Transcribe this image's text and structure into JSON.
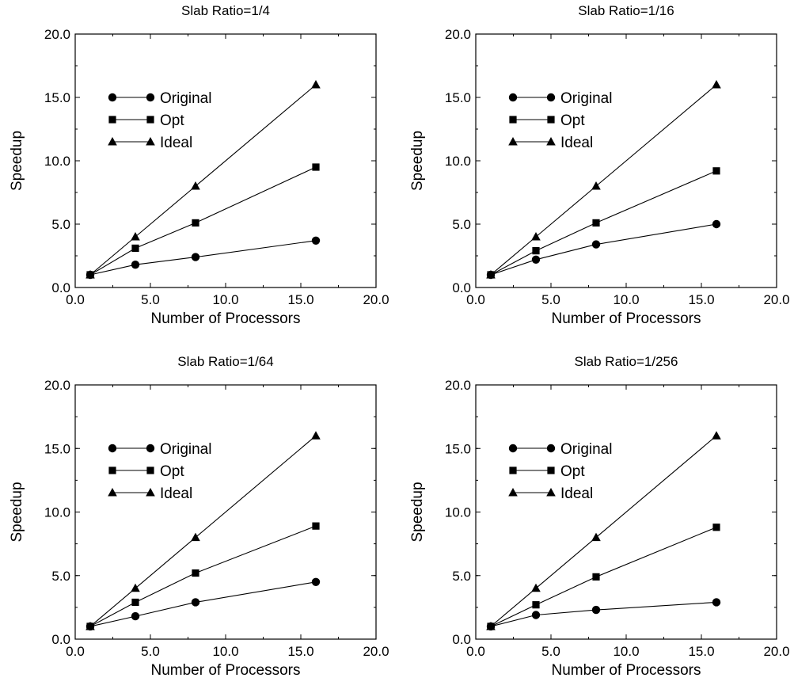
{
  "chart_data": [
    {
      "type": "line",
      "title": "Slab Ratio=1/4",
      "xlabel": "Number of Processors",
      "ylabel": "Speedup",
      "xlim": [
        0,
        20
      ],
      "ylim": [
        0,
        20
      ],
      "x_ticks": [
        "0.0",
        "5.0",
        "10.0",
        "15.0",
        "20.0"
      ],
      "y_ticks": [
        "0.0",
        "5.0",
        "10.0",
        "15.0",
        "20.0"
      ],
      "legend_position": "upper-left",
      "grid": false,
      "x": [
        1,
        4,
        8,
        16
      ],
      "series": [
        {
          "name": "Original",
          "marker": "circle",
          "values": [
            1.0,
            1.8,
            2.4,
            3.7
          ]
        },
        {
          "name": "Opt",
          "marker": "square",
          "values": [
            1.0,
            3.1,
            5.1,
            9.5
          ]
        },
        {
          "name": "Ideal",
          "marker": "triangle",
          "values": [
            1.0,
            4.0,
            8.0,
            16.0
          ]
        }
      ]
    },
    {
      "type": "line",
      "title": "Slab Ratio=1/16",
      "xlabel": "Number of Processors",
      "ylabel": "Speedup",
      "xlim": [
        0,
        20
      ],
      "ylim": [
        0,
        20
      ],
      "x_ticks": [
        "0.0",
        "5.0",
        "10.0",
        "15.0",
        "20.0"
      ],
      "y_ticks": [
        "0.0",
        "5.0",
        "10.0",
        "15.0",
        "20.0"
      ],
      "legend_position": "upper-left",
      "grid": false,
      "x": [
        1,
        4,
        8,
        16
      ],
      "series": [
        {
          "name": "Original",
          "marker": "circle",
          "values": [
            1.0,
            2.2,
            3.4,
            5.0
          ]
        },
        {
          "name": "Opt",
          "marker": "square",
          "values": [
            1.0,
            2.9,
            5.1,
            9.2
          ]
        },
        {
          "name": "Ideal",
          "marker": "triangle",
          "values": [
            1.0,
            4.0,
            8.0,
            16.0
          ]
        }
      ]
    },
    {
      "type": "line",
      "title": "Slab Ratio=1/64",
      "xlabel": "Number of Processors",
      "ylabel": "Speedup",
      "xlim": [
        0,
        20
      ],
      "ylim": [
        0,
        20
      ],
      "x_ticks": [
        "0.0",
        "5.0",
        "10.0",
        "15.0",
        "20.0"
      ],
      "y_ticks": [
        "0.0",
        "5.0",
        "10.0",
        "15.0",
        "20.0"
      ],
      "legend_position": "upper-left",
      "grid": false,
      "x": [
        1,
        4,
        8,
        16
      ],
      "series": [
        {
          "name": "Original",
          "marker": "circle",
          "values": [
            1.0,
            1.8,
            2.9,
            4.5
          ]
        },
        {
          "name": "Opt",
          "marker": "square",
          "values": [
            1.0,
            2.9,
            5.2,
            8.9
          ]
        },
        {
          "name": "Ideal",
          "marker": "triangle",
          "values": [
            1.0,
            4.0,
            8.0,
            16.0
          ]
        }
      ]
    },
    {
      "type": "line",
      "title": "Slab Ratio=1/256",
      "xlabel": "Number of Processors",
      "ylabel": "Speedup",
      "xlim": [
        0,
        20
      ],
      "ylim": [
        0,
        20
      ],
      "x_ticks": [
        "0.0",
        "5.0",
        "10.0",
        "15.0",
        "20.0"
      ],
      "y_ticks": [
        "0.0",
        "5.0",
        "10.0",
        "15.0",
        "20.0"
      ],
      "legend_position": "upper-left",
      "grid": false,
      "x": [
        1,
        4,
        8,
        16
      ],
      "series": [
        {
          "name": "Original",
          "marker": "circle",
          "values": [
            1.0,
            1.9,
            2.3,
            2.9
          ]
        },
        {
          "name": "Opt",
          "marker": "square",
          "values": [
            1.0,
            2.7,
            4.9,
            8.8
          ]
        },
        {
          "name": "Ideal",
          "marker": "triangle",
          "values": [
            1.0,
            4.0,
            8.0,
            16.0
          ]
        }
      ]
    }
  ]
}
